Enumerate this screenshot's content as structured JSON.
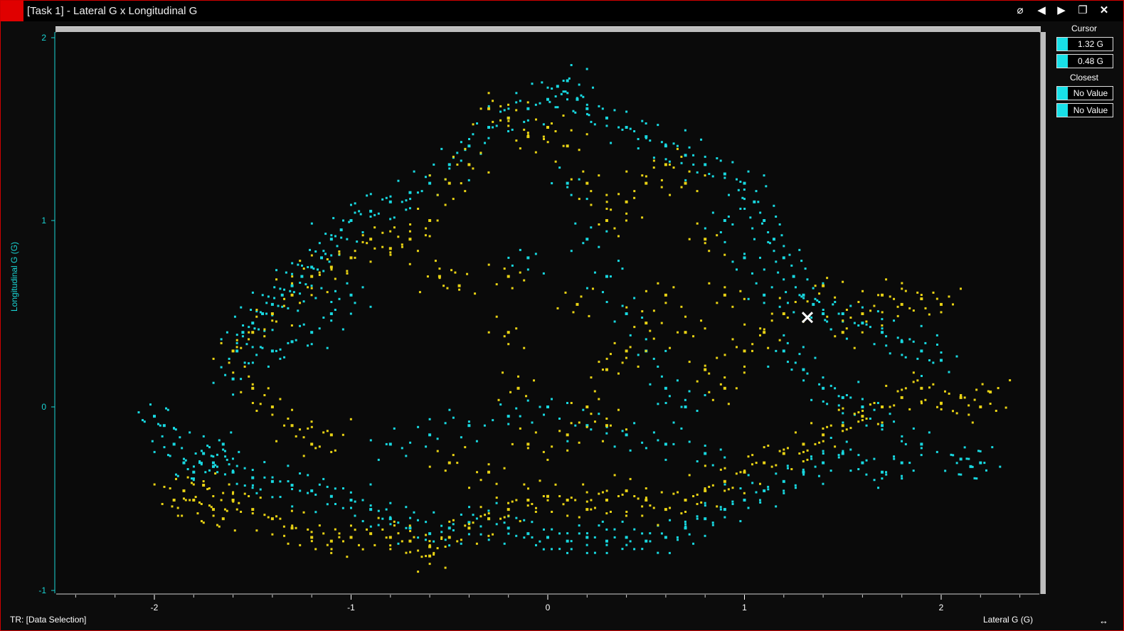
{
  "window": {
    "title": "[Task 1] - Lateral G x Longitudinal G",
    "controls": [
      "lock-icon",
      "prev-icon",
      "next-icon",
      "restore-icon",
      "close-icon"
    ]
  },
  "legend": {
    "cursor_label": "Cursor",
    "cursor_x": "1.32 G",
    "cursor_y": "0.48 G",
    "closest_label": "Closest",
    "closest_x": "No Value",
    "closest_y": "No Value",
    "swatch_color": "#19e0e8"
  },
  "status": {
    "left": "TR: [Data Selection]",
    "resize_glyph": "↔"
  },
  "colors": {
    "series_cyan": "#18d8e0",
    "series_yellow": "#e8d214",
    "cursor_marker": "#ffffff",
    "window_border": "#d00000"
  },
  "chart_data": {
    "type": "scatter",
    "xlabel": "Lateral G (G)",
    "ylabel": "Longitudinal G (G)",
    "xlim": [
      -2.5,
      2.5
    ],
    "ylim": [
      -1,
      2
    ],
    "xticks": [
      "-2",
      "-1",
      "0",
      "1",
      "2"
    ],
    "yticks": [
      "-1",
      "0",
      "1",
      "2"
    ],
    "xtick_values": [
      -2,
      -1,
      0,
      1,
      2
    ],
    "ytick_values": [
      -1,
      0,
      1,
      2
    ],
    "cursor_point": {
      "x": 1.32,
      "y": 0.48
    },
    "series": [
      {
        "color": "#18d8e0",
        "points": [
          [
            -2.0,
            -0.05
          ],
          [
            -1.95,
            -0.1
          ],
          [
            -1.9,
            -0.2
          ],
          [
            -1.85,
            -0.3
          ],
          [
            -1.8,
            -0.35
          ],
          [
            -1.75,
            -0.25
          ],
          [
            -1.7,
            -0.3
          ],
          [
            -1.65,
            -0.2
          ],
          [
            -1.6,
            0.15
          ],
          [
            -1.58,
            0.3
          ],
          [
            -1.55,
            0.4
          ],
          [
            -1.5,
            0.45
          ],
          [
            -1.45,
            0.5
          ],
          [
            -1.4,
            0.55
          ],
          [
            -1.35,
            0.6
          ],
          [
            -1.3,
            0.65
          ],
          [
            -1.25,
            0.7
          ],
          [
            -1.2,
            0.75
          ],
          [
            -1.15,
            0.8
          ],
          [
            -1.1,
            0.9
          ],
          [
            -1.05,
            0.95
          ],
          [
            -1.0,
            1.0
          ],
          [
            -0.9,
            1.05
          ],
          [
            -0.8,
            1.1
          ],
          [
            -0.7,
            1.15
          ],
          [
            -0.6,
            1.2
          ],
          [
            -0.5,
            1.3
          ],
          [
            -0.4,
            1.4
          ],
          [
            -0.3,
            1.5
          ],
          [
            -0.2,
            1.55
          ],
          [
            -0.1,
            1.6
          ],
          [
            0.0,
            1.65
          ],
          [
            0.05,
            1.72
          ],
          [
            0.1,
            1.75
          ],
          [
            0.15,
            1.65
          ],
          [
            0.2,
            1.6
          ],
          [
            0.3,
            1.55
          ],
          [
            0.4,
            1.5
          ],
          [
            0.5,
            1.45
          ],
          [
            0.6,
            1.4
          ],
          [
            0.7,
            1.35
          ],
          [
            0.8,
            1.3
          ],
          [
            0.9,
            1.25
          ],
          [
            1.0,
            1.2
          ],
          [
            1.05,
            1.1
          ],
          [
            1.1,
            1.0
          ],
          [
            1.15,
            0.9
          ],
          [
            1.2,
            0.8
          ],
          [
            1.25,
            0.7
          ],
          [
            1.3,
            0.6
          ],
          [
            1.35,
            0.55
          ],
          [
            1.4,
            0.5
          ],
          [
            1.5,
            0.5
          ],
          [
            1.6,
            0.45
          ],
          [
            1.7,
            0.4
          ],
          [
            1.8,
            0.35
          ],
          [
            1.9,
            0.3
          ],
          [
            2.0,
            0.25
          ],
          [
            1.9,
            -0.2
          ],
          [
            1.8,
            -0.3
          ],
          [
            1.7,
            -0.35
          ],
          [
            1.6,
            -0.3
          ],
          [
            1.5,
            -0.25
          ],
          [
            1.4,
            -0.3
          ],
          [
            1.3,
            -0.35
          ],
          [
            1.2,
            -0.4
          ],
          [
            1.1,
            -0.45
          ],
          [
            1.0,
            -0.5
          ],
          [
            0.9,
            -0.55
          ],
          [
            0.8,
            -0.6
          ],
          [
            0.7,
            -0.65
          ],
          [
            0.6,
            -0.7
          ],
          [
            0.5,
            -0.72
          ],
          [
            0.4,
            -0.7
          ],
          [
            0.3,
            -0.72
          ],
          [
            0.2,
            -0.7
          ],
          [
            0.1,
            -0.72
          ],
          [
            0.0,
            -0.7
          ],
          [
            -0.1,
            -0.68
          ],
          [
            -0.2,
            -0.65
          ],
          [
            -0.3,
            -0.6
          ],
          [
            -0.4,
            -0.62
          ],
          [
            -0.5,
            -0.65
          ],
          [
            -0.6,
            -0.68
          ],
          [
            -0.7,
            -0.65
          ],
          [
            -0.8,
            -0.6
          ],
          [
            -0.9,
            -0.55
          ],
          [
            -1.0,
            -0.5
          ],
          [
            -1.1,
            -0.48
          ],
          [
            -1.2,
            -0.45
          ],
          [
            -1.3,
            -0.42
          ],
          [
            -1.4,
            -0.4
          ],
          [
            -1.5,
            -0.38
          ],
          [
            -1.6,
            -0.35
          ],
          [
            -1.7,
            -0.32
          ],
          [
            -1.4,
            0.3
          ],
          [
            -1.3,
            0.35
          ],
          [
            -1.2,
            0.4
          ],
          [
            -1.1,
            0.5
          ],
          [
            -1.0,
            0.6
          ],
          [
            -0.8,
            -0.2
          ],
          [
            -0.6,
            -0.15
          ],
          [
            -0.4,
            -0.1
          ],
          [
            -0.2,
            -0.05
          ],
          [
            0.0,
            0.0
          ],
          [
            0.2,
            -0.1
          ],
          [
            0.4,
            -0.15
          ],
          [
            0.6,
            -0.2
          ],
          [
            0.8,
            -0.25
          ],
          [
            0.1,
            1.2
          ],
          [
            0.2,
            0.9
          ],
          [
            0.3,
            0.7
          ],
          [
            0.4,
            0.5
          ],
          [
            -0.1,
            0.8
          ],
          [
            0.5,
            0.3
          ],
          [
            0.6,
            0.1
          ],
          [
            0.7,
            0.0
          ],
          [
            0.9,
            1.0
          ],
          [
            1.0,
            0.8
          ],
          [
            1.1,
            0.6
          ],
          [
            1.2,
            0.3
          ],
          [
            1.3,
            0.2
          ],
          [
            1.4,
            0.1
          ],
          [
            1.5,
            0.05
          ],
          [
            1.6,
            0.0
          ],
          [
            1.7,
            -0.1
          ],
          [
            2.1,
            -0.28
          ],
          [
            2.2,
            -0.3
          ],
          [
            2.15,
            -0.32
          ]
        ]
      },
      {
        "color": "#e8d214",
        "points": [
          [
            -1.9,
            -0.5
          ],
          [
            -1.85,
            -0.45
          ],
          [
            -1.8,
            -0.5
          ],
          [
            -1.75,
            -0.42
          ],
          [
            -1.7,
            -0.55
          ],
          [
            -1.65,
            -0.6
          ],
          [
            -1.6,
            -0.5
          ],
          [
            -1.5,
            -0.55
          ],
          [
            -1.4,
            -0.6
          ],
          [
            -1.3,
            -0.65
          ],
          [
            -1.2,
            -0.7
          ],
          [
            -1.1,
            -0.72
          ],
          [
            -1.0,
            -0.7
          ],
          [
            -0.9,
            -0.68
          ],
          [
            -0.8,
            -0.7
          ],
          [
            -0.7,
            -0.72
          ],
          [
            -0.6,
            -0.75
          ],
          [
            -0.6,
            -0.8
          ],
          [
            -0.5,
            -0.7
          ],
          [
            -0.4,
            -0.65
          ],
          [
            -0.3,
            -0.6
          ],
          [
            -0.2,
            -0.55
          ],
          [
            -0.1,
            -0.5
          ],
          [
            0.0,
            -0.48
          ],
          [
            0.1,
            -0.5
          ],
          [
            0.2,
            -0.55
          ],
          [
            0.3,
            -0.5
          ],
          [
            0.4,
            -0.45
          ],
          [
            0.5,
            -0.5
          ],
          [
            0.6,
            -0.55
          ],
          [
            0.7,
            -0.5
          ],
          [
            0.8,
            -0.45
          ],
          [
            0.9,
            -0.4
          ],
          [
            1.0,
            -0.35
          ],
          [
            1.1,
            -0.3
          ],
          [
            1.2,
            -0.25
          ],
          [
            1.3,
            -0.2
          ],
          [
            1.4,
            -0.15
          ],
          [
            1.5,
            -0.1
          ],
          [
            1.6,
            -0.05
          ],
          [
            1.7,
            0.0
          ],
          [
            1.8,
            0.05
          ],
          [
            1.9,
            0.1
          ],
          [
            2.0,
            0.02
          ],
          [
            2.1,
            0.05
          ],
          [
            2.2,
            0.0
          ],
          [
            2.25,
            0.08
          ],
          [
            1.5,
            0.4
          ],
          [
            1.6,
            0.5
          ],
          [
            1.7,
            0.6
          ],
          [
            1.8,
            0.55
          ],
          [
            1.9,
            0.58
          ],
          [
            2.0,
            0.55
          ],
          [
            1.4,
            0.65
          ],
          [
            1.2,
            0.5
          ],
          [
            1.1,
            0.4
          ],
          [
            1.0,
            0.3
          ],
          [
            0.9,
            0.6
          ],
          [
            0.8,
            0.9
          ],
          [
            0.7,
            1.2
          ],
          [
            0.6,
            1.3
          ],
          [
            0.5,
            1.2
          ],
          [
            0.4,
            1.1
          ],
          [
            0.3,
            1.0
          ],
          [
            0.2,
            1.2
          ],
          [
            0.1,
            1.4
          ],
          [
            0.0,
            1.5
          ],
          [
            -0.1,
            1.45
          ],
          [
            -0.2,
            1.55
          ],
          [
            -0.3,
            1.6
          ],
          [
            -0.4,
            1.3
          ],
          [
            -0.5,
            1.2
          ],
          [
            -0.6,
            1.0
          ],
          [
            -0.7,
            0.9
          ],
          [
            -0.8,
            0.85
          ],
          [
            -0.9,
            0.9
          ],
          [
            -1.0,
            0.8
          ],
          [
            -1.1,
            0.75
          ],
          [
            -1.2,
            0.7
          ],
          [
            -1.3,
            0.6
          ],
          [
            -1.4,
            0.5
          ],
          [
            -1.5,
            0.4
          ],
          [
            -1.6,
            0.3
          ],
          [
            -1.5,
            0.1
          ],
          [
            -1.4,
            0.0
          ],
          [
            -1.3,
            -0.1
          ],
          [
            -1.2,
            -0.2
          ],
          [
            -1.1,
            -0.15
          ],
          [
            -0.5,
            -0.3
          ],
          [
            -0.3,
            -0.35
          ],
          [
            -0.1,
            -0.2
          ],
          [
            0.1,
            -0.15
          ],
          [
            0.3,
            -0.1
          ],
          [
            -0.2,
            0.7
          ],
          [
            -0.2,
            0.4
          ],
          [
            -0.15,
            0.1
          ],
          [
            0.2,
            0.0
          ],
          [
            0.3,
            0.2
          ],
          [
            0.4,
            0.3
          ],
          [
            0.5,
            0.45
          ],
          [
            0.6,
            0.6
          ],
          [
            0.7,
            0.4
          ],
          [
            0.8,
            0.2
          ],
          [
            0.9,
            0.1
          ],
          [
            0.15,
            0.55
          ],
          [
            -0.55,
            0.7
          ],
          [
            -0.45,
            0.65
          ]
        ]
      }
    ]
  }
}
